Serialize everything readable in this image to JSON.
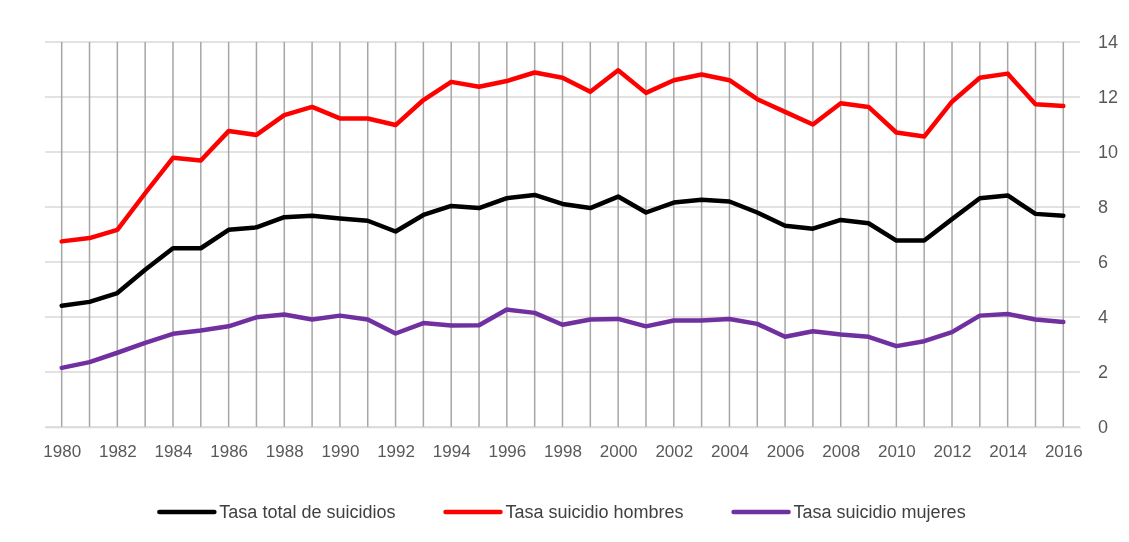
{
  "chart_data": {
    "type": "line",
    "x": [
      1980,
      1981,
      1982,
      1983,
      1984,
      1985,
      1986,
      1987,
      1988,
      1989,
      1990,
      1991,
      1992,
      1993,
      1994,
      1995,
      1996,
      1997,
      1998,
      1999,
      2000,
      2001,
      2002,
      2003,
      2004,
      2005,
      2006,
      2007,
      2008,
      2009,
      2010,
      2011,
      2012,
      2013,
      2014,
      2015,
      2016
    ],
    "series": [
      {
        "name": "Tasa total de suicidios",
        "color": "#000000",
        "values": [
          4.41,
          4.55,
          4.87,
          5.72,
          6.5,
          6.5,
          7.17,
          7.26,
          7.63,
          7.68,
          7.58,
          7.5,
          7.11,
          7.71,
          8.04,
          7.96,
          8.32,
          8.44,
          8.11,
          7.96,
          8.38,
          7.8,
          8.16,
          8.26,
          8.2,
          7.8,
          7.32,
          7.21,
          7.53,
          7.41,
          6.78,
          6.78,
          7.56,
          8.32,
          8.42,
          7.75,
          7.68
        ]
      },
      {
        "name": "Tasa suicidio hombres",
        "color": "#ff0000",
        "values": [
          6.75,
          6.87,
          7.17,
          8.5,
          9.79,
          9.69,
          10.76,
          10.62,
          11.34,
          11.64,
          11.22,
          11.22,
          10.98,
          11.89,
          12.55,
          12.37,
          12.58,
          12.89,
          12.7,
          12.19,
          12.97,
          12.15,
          12.61,
          12.82,
          12.61,
          11.92,
          11.46,
          11.0,
          11.77,
          11.64,
          10.71,
          10.56,
          11.83,
          12.7,
          12.85,
          11.74,
          11.67
        ]
      },
      {
        "name": "Tasa suicidio mujeres",
        "color": "#7030a0",
        "values": [
          2.15,
          2.36,
          2.7,
          3.06,
          3.39,
          3.51,
          3.66,
          3.99,
          4.09,
          3.91,
          4.05,
          3.91,
          3.4,
          3.78,
          3.69,
          3.7,
          4.27,
          4.15,
          3.72,
          3.91,
          3.93,
          3.66,
          3.87,
          3.87,
          3.93,
          3.75,
          3.28,
          3.48,
          3.36,
          3.28,
          2.94,
          3.12,
          3.45,
          4.05,
          4.11,
          3.91,
          3.82
        ]
      }
    ],
    "xlim": [
      1979.4,
      2016.6
    ],
    "xticks": [
      1980,
      {
        "value": 1981,
        "label": null
      },
      1982,
      {
        "value": 1983,
        "label": null
      },
      1984,
      {
        "value": 1985,
        "label": null
      },
      1986,
      {
        "value": 1987,
        "label": null
      },
      1988,
      {
        "value": 1989,
        "label": null
      },
      1990,
      {
        "value": 1991,
        "label": null
      },
      1992,
      {
        "value": 1993,
        "label": null
      },
      1994,
      {
        "value": 1995,
        "label": null
      },
      1996,
      {
        "value": 1997,
        "label": null
      },
      1998,
      {
        "value": 1999,
        "label": null
      },
      2000,
      {
        "value": 2001,
        "label": null
      },
      2002,
      {
        "value": 2003,
        "label": null
      },
      2004,
      {
        "value": 2005,
        "label": null
      },
      2006,
      {
        "value": 2007,
        "label": null
      },
      2008,
      {
        "value": 2009,
        "label": null
      },
      2010,
      {
        "value": 2011,
        "label": null
      },
      2012,
      {
        "value": 2013,
        "label": null
      },
      2014,
      {
        "value": 2015,
        "label": null
      },
      2016
    ],
    "ylim": [
      0,
      14
    ],
    "yticks": [
      0,
      2,
      4,
      6,
      8,
      10,
      12,
      14
    ],
    "grid": true,
    "legend": "bottom",
    "marker": "none",
    "line_style": "solid"
  }
}
